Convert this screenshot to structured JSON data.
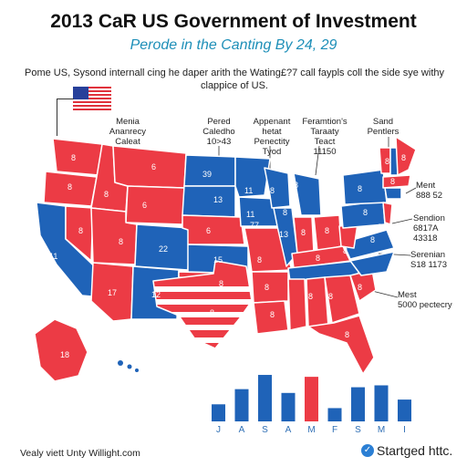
{
  "header": {
    "title": "2013 CaR US Government of Investment",
    "subtitle": "Perode in the Canting By 24, 29",
    "description_line1": "Pome US, Sysond internall cing he daper arith the Wating£?7 call faypls coll the side sye withy",
    "description_line2": "clappice of US."
  },
  "callouts": {
    "left": [
      "Menia",
      "Ananrecy",
      "Caleat"
    ],
    "center1": [
      "Pered",
      "Caledho",
      "10>43"
    ],
    "center2": [
      "Appenant",
      "hetat",
      "Penectity",
      "Tyod"
    ],
    "center3": [
      "Feramtion's",
      "Taraaty",
      "Teact",
      "11150"
    ],
    "topright": [
      "Sand",
      "Pentlers"
    ],
    "right1": [
      "Ment",
      "888 52"
    ],
    "right2": [
      "Sendion",
      "6817A",
      "43318"
    ],
    "right3": [
      "Serenian",
      "S18 1173"
    ],
    "right4": [
      "Mest",
      "5000 pectecry"
    ]
  },
  "map": {
    "colors": {
      "red": "#ec3b45",
      "blue": "#1f63b8",
      "white": "#ffffff"
    },
    "state_labels": [
      "8",
      "8",
      "6",
      "6",
      "8",
      "8",
      "8",
      "6",
      "8",
      "8",
      "11",
      "12",
      "8",
      "8",
      "17",
      "18",
      "22",
      "39",
      "13",
      "15",
      "11",
      "8",
      "77",
      "11",
      "13",
      "8",
      "8",
      "8",
      "8",
      "8",
      "8",
      "8",
      "8",
      "8",
      "8",
      "8",
      "8",
      "8",
      "8",
      "8",
      "8",
      "8",
      "8"
    ]
  },
  "chart_data": {
    "type": "bar",
    "categories": [
      "J",
      "A",
      "S",
      "A",
      "M",
      "F",
      "S",
      "M",
      "I"
    ],
    "values": [
      18,
      34,
      49,
      30,
      47,
      14,
      36,
      38,
      23
    ],
    "colors": [
      "#1f63b8",
      "#1f63b8",
      "#1f63b8",
      "#1f63b8",
      "#ec3b45",
      "#1f63b8",
      "#1f63b8",
      "#1f63b8",
      "#1f63b8"
    ],
    "title": "",
    "xlabel": "",
    "ylabel": "",
    "ylim": [
      0,
      50
    ]
  },
  "footer": {
    "left": "Vealy viett Unty Willight.com",
    "right": "Startged httc.",
    "icon": "check-badge-icon"
  }
}
